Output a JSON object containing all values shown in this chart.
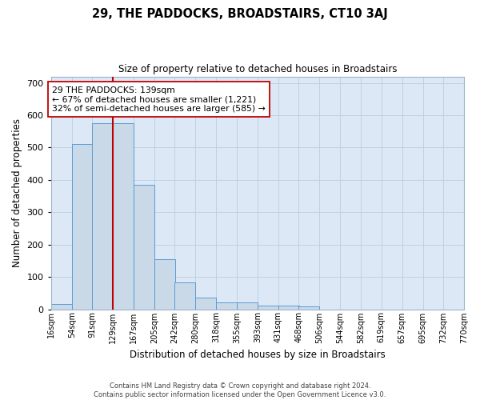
{
  "title": "29, THE PADDOCKS, BROADSTAIRS, CT10 3AJ",
  "subtitle": "Size of property relative to detached houses in Broadstairs",
  "xlabel": "Distribution of detached houses by size in Broadstairs",
  "ylabel": "Number of detached properties",
  "bin_labels": [
    "16sqm",
    "54sqm",
    "91sqm",
    "129sqm",
    "167sqm",
    "205sqm",
    "242sqm",
    "280sqm",
    "318sqm",
    "355sqm",
    "393sqm",
    "431sqm",
    "468sqm",
    "506sqm",
    "544sqm",
    "582sqm",
    "619sqm",
    "657sqm",
    "695sqm",
    "732sqm",
    "770sqm"
  ],
  "bar_values": [
    15,
    510,
    575,
    575,
    385,
    155,
    82,
    35,
    22,
    22,
    12,
    12,
    8,
    0,
    0,
    0,
    0,
    0,
    0,
    0
  ],
  "bar_color": "#c9d9e8",
  "bar_edge_color": "#5b9bd5",
  "vline_x": 129,
  "vline_color": "#c00000",
  "annotation_text": "29 THE PADDOCKS: 139sqm\n← 67% of detached houses are smaller (1,221)\n32% of semi-detached houses are larger (585) →",
  "annotation_box_color": "#ffffff",
  "annotation_box_edge": "#c00000",
  "ylim": [
    0,
    720
  ],
  "yticks": [
    0,
    100,
    200,
    300,
    400,
    500,
    600,
    700
  ],
  "background_color": "#dce8f5",
  "footer_text": "Contains HM Land Registry data © Crown copyright and database right 2024.\nContains public sector information licensed under the Open Government Licence v3.0."
}
